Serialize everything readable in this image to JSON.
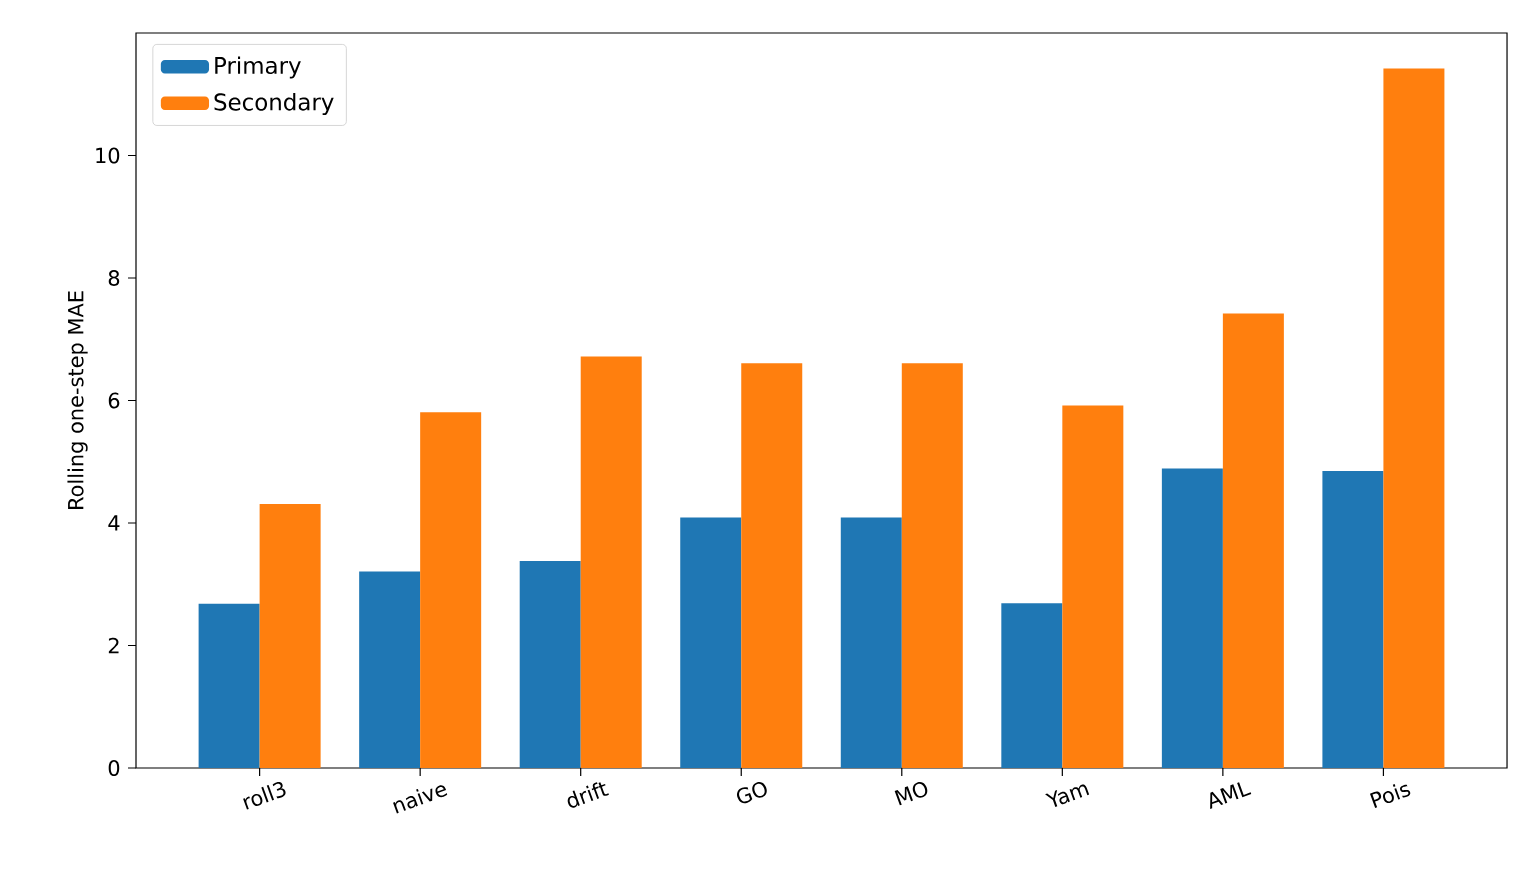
{
  "chart_data": {
    "type": "bar",
    "ylabel": "Rolling one-step MAE",
    "categories": [
      "roll3",
      "naive",
      "drift",
      "GO",
      "MO",
      "Yam",
      "AML",
      "Pois"
    ],
    "series": [
      {
        "name": "Primary",
        "color": "#1f77b4",
        "values": [
          2.68,
          3.21,
          3.38,
          4.09,
          4.09,
          2.69,
          4.89,
          4.85
        ]
      },
      {
        "name": "Secondary",
        "color": "#ff7f0e",
        "values": [
          4.31,
          5.81,
          6.72,
          6.61,
          6.61,
          5.92,
          7.42,
          11.42
        ]
      }
    ],
    "ylim": [
      0,
      12
    ],
    "yticks": [
      0,
      2,
      4,
      6,
      8,
      10
    ],
    "legend": "top left",
    "grid": false
  }
}
